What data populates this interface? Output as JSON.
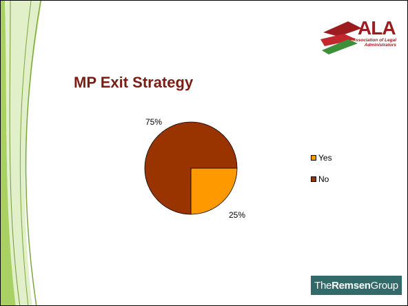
{
  "slide": {
    "title": "MP Exit Strategy"
  },
  "logo": {
    "letters": "ALA",
    "tagline": "Association of Legal Administrators",
    "colors": {
      "red": "#9d1c20",
      "green": "#3e8f3a"
    }
  },
  "footer_logo": {
    "prefix": "The",
    "bold": "Remsen",
    "suffix": "Group",
    "color": "#326a69"
  },
  "chart_data": {
    "type": "pie",
    "title": "",
    "slices": [
      {
        "label": "Yes",
        "value": 25,
        "data_label": "25%",
        "color": "#ff9900"
      },
      {
        "label": "No",
        "value": 75,
        "data_label": "75%",
        "color": "#993300"
      }
    ],
    "legend_position": "right"
  },
  "decoration": {
    "left_band_color": "#8fbf4a"
  }
}
